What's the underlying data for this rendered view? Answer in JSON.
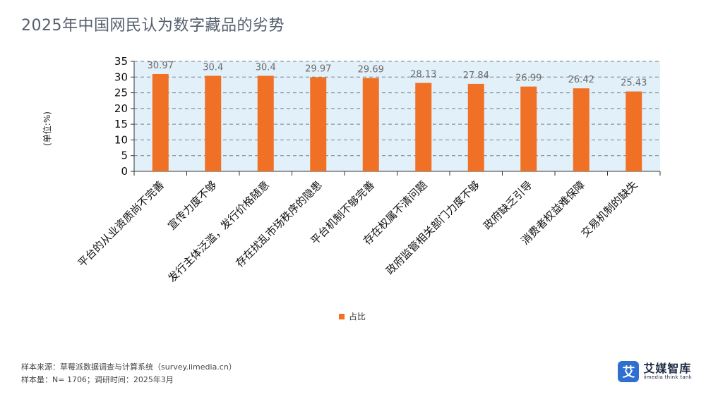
{
  "title": "2025年中国网民认为数字藏品的劣势",
  "chart_data": {
    "type": "bar",
    "categories": [
      "平台的从业资质尚不完善",
      "宣传力度不够",
      "发行主体泛滥，发行价格随意",
      "存在扰乱市场秩序的隐患",
      "平台机制不够完善",
      "存在权属不清问题",
      "政府监管相关部门力度不够",
      "政府缺乏引导",
      "消费者权益难保障",
      "交易机制的缺失"
    ],
    "series": [
      {
        "name": "占比",
        "values": [
          30.97,
          30.4,
          30.4,
          29.97,
          29.69,
          28.13,
          27.84,
          26.99,
          26.42,
          25.43
        ],
        "color": "#f07126"
      }
    ],
    "value_labels": [
      "30.97",
      "30.4",
      "30.4",
      "29.97",
      "29.69",
      "28.13",
      "27.84",
      "26.99",
      "26.42",
      "25.43"
    ],
    "ylabel": "(单位:%)",
    "ylim": [
      0,
      35
    ],
    "yticks": [
      0,
      5,
      10,
      15,
      20,
      25,
      30,
      35
    ],
    "grid": true,
    "plot_background": "#e2f0fa",
    "legend_position": "bottom"
  },
  "legend": {
    "label": "占比"
  },
  "source": {
    "line1": "样本来源：草莓派数据调查与计算系统（survey.iimedia.cn）",
    "line2": "样本量：N= 1706；调研时间：2025年3月"
  },
  "logo": {
    "mark": "艾",
    "name_cn": "艾媒智库",
    "name_en": "iimedia think tank"
  }
}
